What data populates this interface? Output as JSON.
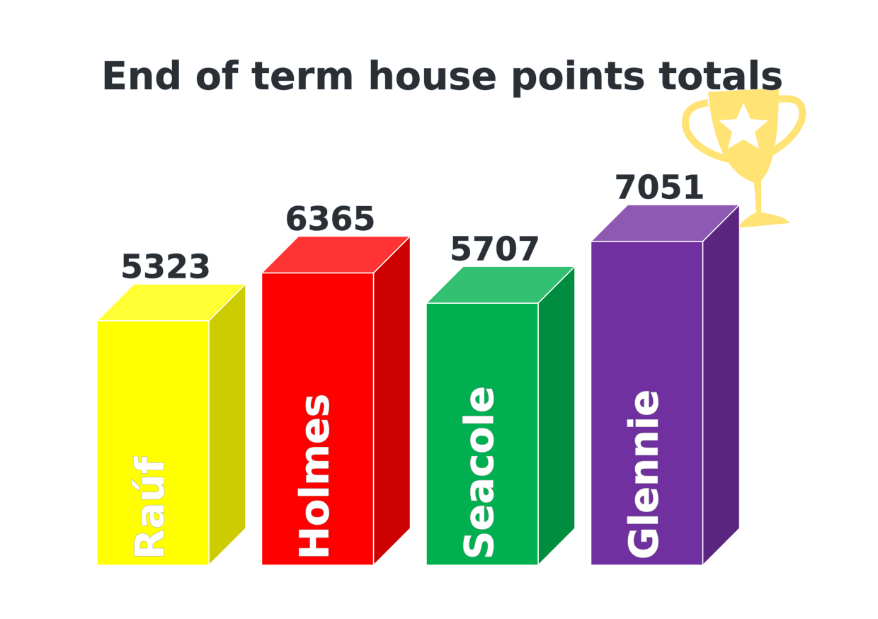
{
  "chart_data": {
    "type": "bar",
    "title": "End of term house points totals",
    "categories": [
      "Raúf",
      "Holmes",
      "Seacole",
      "Glennie"
    ],
    "values": [
      5323,
      6365,
      5707,
      7051
    ],
    "colors": [
      "#ffff00",
      "#ff0000",
      "#00b050",
      "#7030a0"
    ]
  }
}
